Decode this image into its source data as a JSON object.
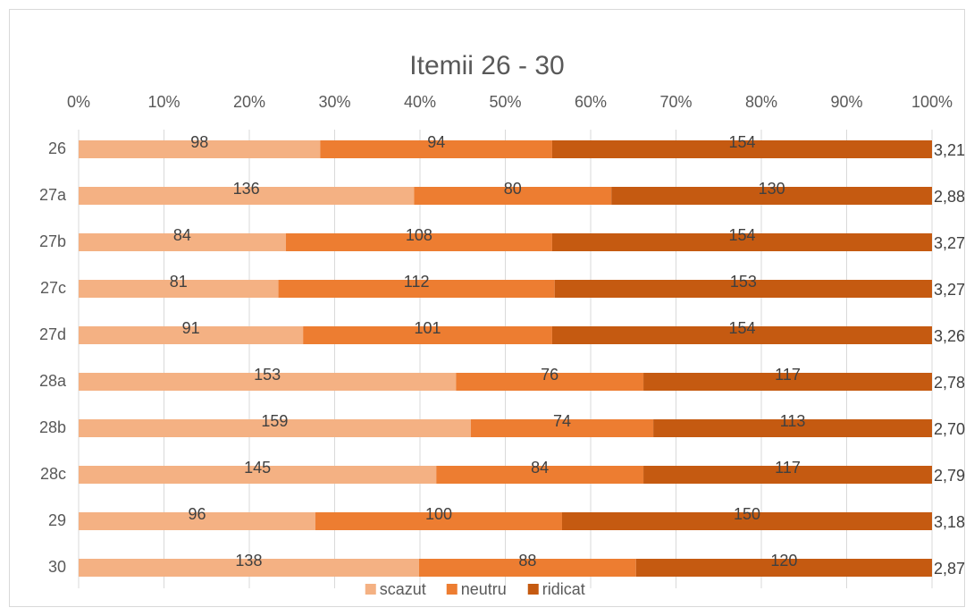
{
  "chart_data": {
    "type": "bar",
    "orientation": "horizontal",
    "stacked": "percent",
    "title": "Itemii 26 - 30",
    "categories": [
      "26",
      "27a",
      "27b",
      "27c",
      "27d",
      "28a",
      "28b",
      "28c",
      "29",
      "30"
    ],
    "series": [
      {
        "name": "scazut",
        "color": "#f4b183",
        "values": [
          98,
          136,
          84,
          81,
          91,
          153,
          159,
          145,
          96,
          138
        ]
      },
      {
        "name": "neutru",
        "color": "#ed7d31",
        "values": [
          94,
          80,
          108,
          112,
          101,
          76,
          74,
          84,
          100,
          88
        ]
      },
      {
        "name": "ridicat",
        "color": "#c55a11",
        "values": [
          154,
          130,
          154,
          153,
          154,
          117,
          113,
          117,
          150,
          120
        ]
      }
    ],
    "means": [
      3.21,
      2.88,
      3.27,
      3.27,
      3.26,
      2.78,
      2.7,
      2.79,
      3.18,
      2.87
    ],
    "mean_labels": [
      "3,21",
      "2,88",
      "3,27",
      "3,27",
      "3,26",
      "2,78",
      "2,70",
      "2,79",
      "3,18",
      "2,87"
    ],
    "xlim": [
      0,
      100
    ],
    "xticks": [
      {
        "value": 0,
        "label": "0%"
      },
      {
        "value": 10,
        "label": "10%"
      },
      {
        "value": 20,
        "label": "20%"
      },
      {
        "value": 30,
        "label": "30%"
      },
      {
        "value": 40,
        "label": "40%"
      },
      {
        "value": 50,
        "label": "50%"
      },
      {
        "value": 60,
        "label": "60%"
      },
      {
        "value": 70,
        "label": "70%"
      },
      {
        "value": 80,
        "label": "80%"
      },
      {
        "value": 90,
        "label": "90%"
      },
      {
        "value": 100,
        "label": "100%"
      }
    ],
    "grid": true,
    "legend": "bottom"
  }
}
